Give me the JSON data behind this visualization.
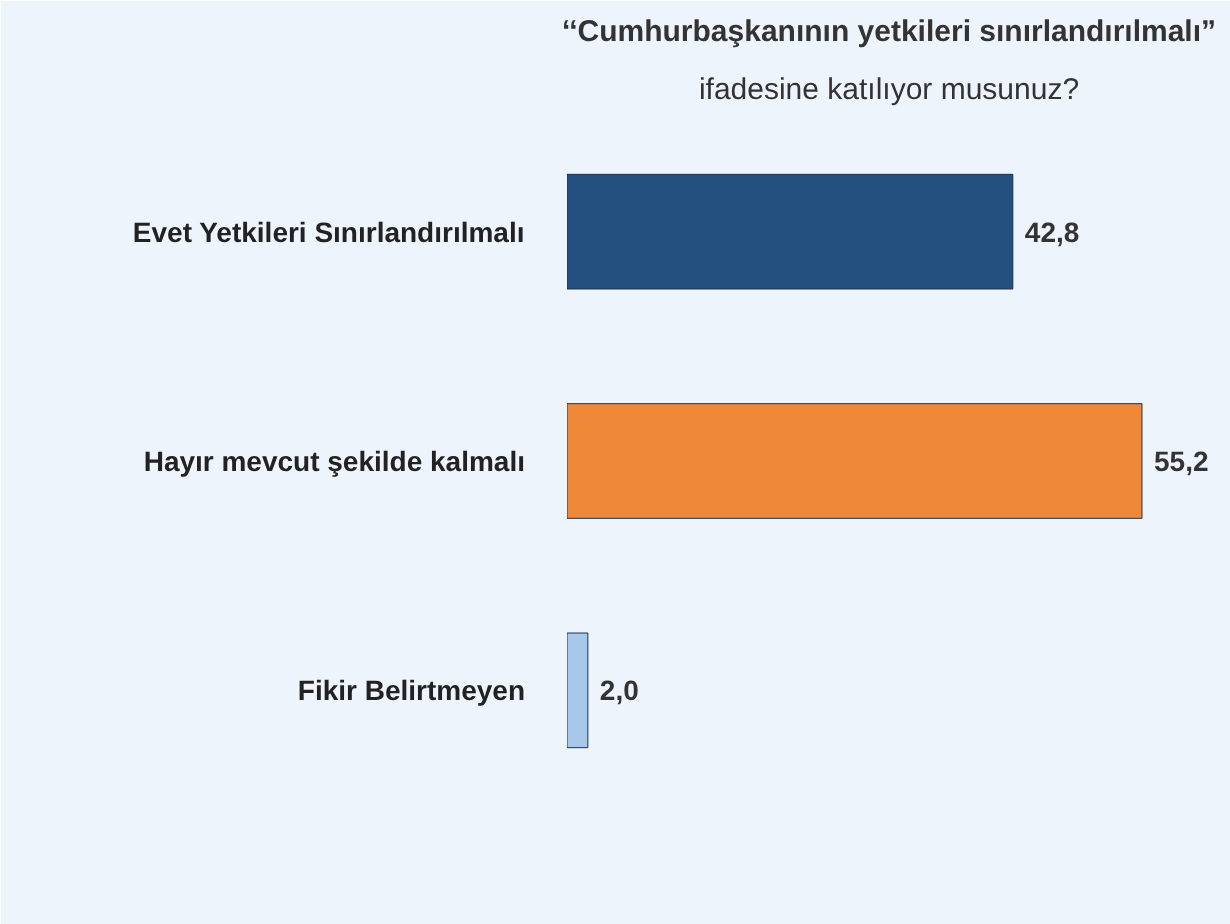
{
  "chart_data": {
    "type": "bar",
    "orientation": "horizontal",
    "title": "‘‘Cumhurbaşkanının yetkileri sınırlandırılmalı”",
    "subtitle": "ifadesine katılıyor musunuz?",
    "categories": [
      "Evet Yetkileri Sınırlandırılmalı",
      "Hayır mevcut şekilde kalmalı",
      "Fikir Belirtmeyen"
    ],
    "values": [
      42.8,
      55.2,
      2.0
    ],
    "colors": [
      "#24507f",
      "#f0883a",
      "#a8c8ea"
    ],
    "value_labels": [
      "42,8",
      "55,2",
      "2,0"
    ],
    "grid": false
  }
}
